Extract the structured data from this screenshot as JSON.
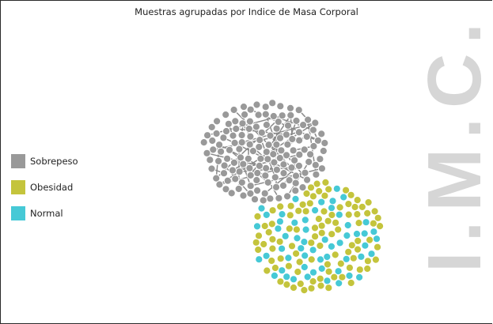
{
  "chart_data": {
    "type": "scatter",
    "title": "Muestras agrupadas por Indice de Masa Corporal",
    "side_label": "I.M.C.",
    "legend_position": "left",
    "series": [
      {
        "name": "Sobrepeso",
        "color": "#999999",
        "count": 180
      },
      {
        "name": "Obesidad",
        "color": "#c4c43c",
        "count": 170
      },
      {
        "name": "Normal",
        "color": "#46c9d6",
        "count": 95
      }
    ]
  }
}
